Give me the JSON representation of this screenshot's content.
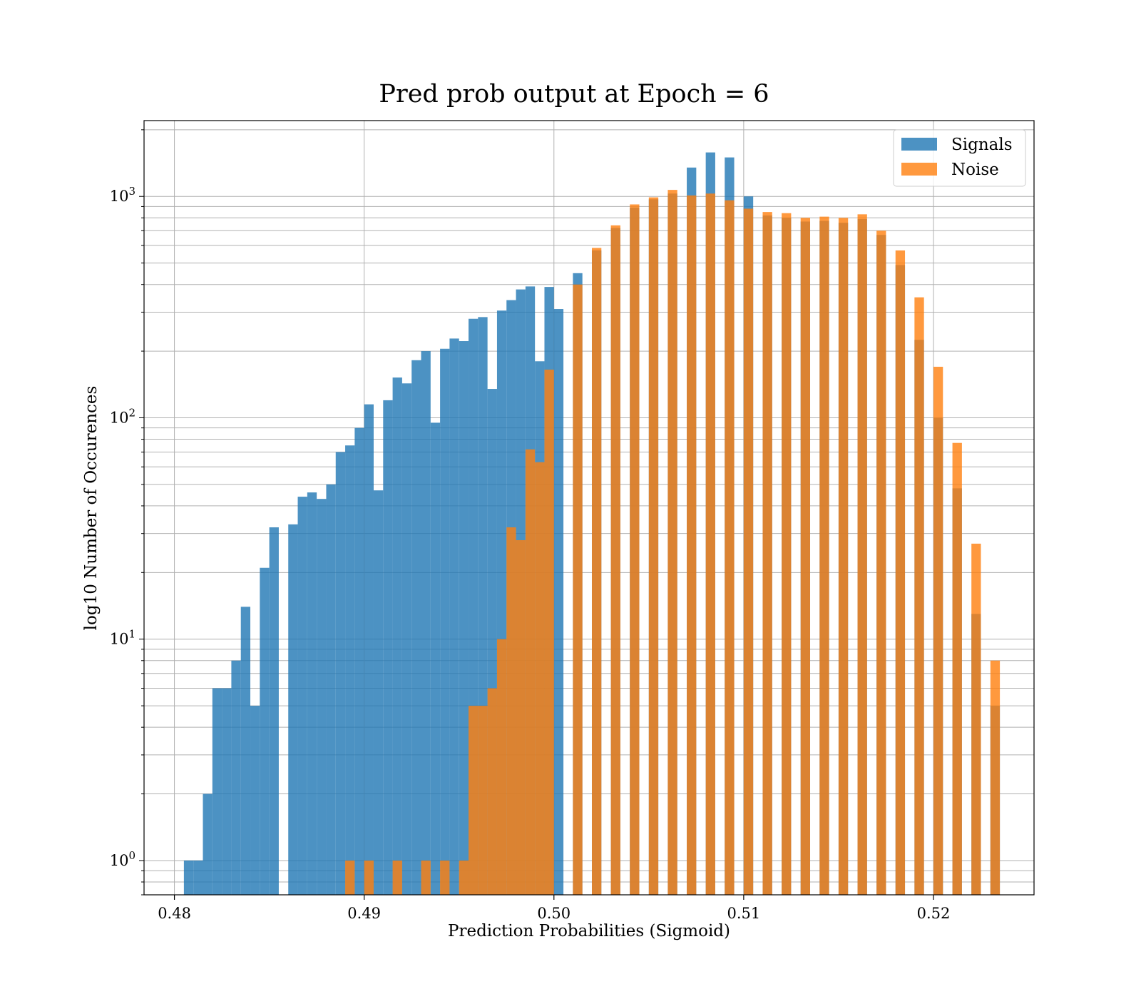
{
  "chart_data": {
    "type": "bar",
    "title": "Pred prob output at Epoch = 6",
    "xlabel": "Prediction Probabilities (Sigmoid)",
    "ylabel": "log10 Number of Occurences",
    "yscale": "log",
    "xlim": [
      0.4784,
      0.5253
    ],
    "ylim": [
      0.7,
      2200
    ],
    "x_ticks": [
      {
        "value": 0.48,
        "label": "0.48"
      },
      {
        "value": 0.49,
        "label": "0.49"
      },
      {
        "value": 0.5,
        "label": "0.50"
      },
      {
        "value": 0.51,
        "label": "0.51"
      },
      {
        "value": 0.52,
        "label": "0.52"
      }
    ],
    "y_ticks": [
      {
        "value": 1,
        "base": "10",
        "exp": "0"
      },
      {
        "value": 10,
        "base": "10",
        "exp": "1"
      },
      {
        "value": 100,
        "base": "10",
        "exp": "2"
      },
      {
        "value": 1000,
        "base": "10",
        "exp": "3"
      }
    ],
    "grid": true,
    "legend_position": "top-right",
    "series": [
      {
        "name": "Signals",
        "color": "#1f77b4",
        "bins": [
          [
            0.4805,
            0.481,
            1
          ],
          [
            0.481,
            0.4815,
            1
          ],
          [
            0.4815,
            0.482,
            2
          ],
          [
            0.482,
            0.4825,
            6
          ],
          [
            0.4825,
            0.483,
            6
          ],
          [
            0.483,
            0.4835,
            8
          ],
          [
            0.4835,
            0.484,
            14
          ],
          [
            0.484,
            0.4845,
            5
          ],
          [
            0.4845,
            0.485,
            21
          ],
          [
            0.485,
            0.4855,
            32
          ],
          [
            0.486,
            0.4865,
            33
          ],
          [
            0.4865,
            0.487,
            44
          ],
          [
            0.487,
            0.4875,
            46
          ],
          [
            0.4875,
            0.488,
            43
          ],
          [
            0.488,
            0.4885,
            50
          ],
          [
            0.4885,
            0.489,
            70
          ],
          [
            0.489,
            0.4895,
            75
          ],
          [
            0.4895,
            0.49,
            90
          ],
          [
            0.49,
            0.4905,
            115
          ],
          [
            0.4905,
            0.491,
            47
          ],
          [
            0.491,
            0.4915,
            120
          ],
          [
            0.4915,
            0.492,
            152
          ],
          [
            0.492,
            0.4925,
            143
          ],
          [
            0.4925,
            0.493,
            182
          ],
          [
            0.493,
            0.4935,
            200
          ],
          [
            0.4935,
            0.494,
            95
          ],
          [
            0.494,
            0.4945,
            205
          ],
          [
            0.4945,
            0.495,
            228
          ],
          [
            0.495,
            0.4955,
            222
          ],
          [
            0.4955,
            0.496,
            280
          ],
          [
            0.496,
            0.4965,
            285
          ],
          [
            0.4965,
            0.497,
            135
          ],
          [
            0.497,
            0.4975,
            305
          ],
          [
            0.4975,
            0.498,
            340
          ],
          [
            0.498,
            0.4985,
            380
          ],
          [
            0.4985,
            0.499,
            392
          ],
          [
            0.499,
            0.4995,
            180
          ],
          [
            0.4995,
            0.5,
            390
          ],
          [
            0.5,
            0.5005,
            310
          ],
          [
            0.501,
            0.5015,
            450
          ],
          [
            0.502,
            0.5025,
            570
          ],
          [
            0.503,
            0.5035,
            720
          ],
          [
            0.504,
            0.5045,
            890
          ],
          [
            0.505,
            0.5055,
            970
          ],
          [
            0.506,
            0.5065,
            1030
          ],
          [
            0.507,
            0.5075,
            1350
          ],
          [
            0.508,
            0.5085,
            1580
          ],
          [
            0.509,
            0.5095,
            1500
          ],
          [
            0.51,
            0.5105,
            1000
          ],
          [
            0.511,
            0.5115,
            820
          ],
          [
            0.512,
            0.5125,
            800
          ],
          [
            0.513,
            0.5135,
            770
          ],
          [
            0.514,
            0.5145,
            775
          ],
          [
            0.515,
            0.5155,
            760
          ],
          [
            0.516,
            0.5165,
            790
          ],
          [
            0.517,
            0.5175,
            670
          ],
          [
            0.518,
            0.5185,
            490
          ],
          [
            0.519,
            0.5195,
            225
          ],
          [
            0.52,
            0.5205,
            100
          ],
          [
            0.521,
            0.5215,
            48
          ],
          [
            0.522,
            0.5225,
            13
          ],
          [
            0.523,
            0.5235,
            5
          ]
        ]
      },
      {
        "name": "Noise",
        "color": "#ff7f0e",
        "bins": [
          [
            0.489,
            0.4895,
            1
          ],
          [
            0.49,
            0.4905,
            1
          ],
          [
            0.4915,
            0.492,
            1
          ],
          [
            0.493,
            0.4935,
            1
          ],
          [
            0.494,
            0.4945,
            1
          ],
          [
            0.495,
            0.4955,
            1
          ],
          [
            0.4955,
            0.496,
            5
          ],
          [
            0.496,
            0.4965,
            5
          ],
          [
            0.4965,
            0.497,
            6
          ],
          [
            0.497,
            0.4975,
            10
          ],
          [
            0.4975,
            0.498,
            32
          ],
          [
            0.498,
            0.4985,
            28
          ],
          [
            0.4985,
            0.499,
            72
          ],
          [
            0.499,
            0.4995,
            63
          ],
          [
            0.4995,
            0.5,
            165
          ],
          [
            0.501,
            0.5015,
            400
          ],
          [
            0.502,
            0.5025,
            585
          ],
          [
            0.503,
            0.5035,
            740
          ],
          [
            0.504,
            0.5045,
            920
          ],
          [
            0.505,
            0.5055,
            990
          ],
          [
            0.506,
            0.5065,
            1070
          ],
          [
            0.507,
            0.5075,
            1010
          ],
          [
            0.508,
            0.5085,
            1030
          ],
          [
            0.509,
            0.5095,
            960
          ],
          [
            0.51,
            0.5105,
            880
          ],
          [
            0.511,
            0.5115,
            850
          ],
          [
            0.512,
            0.5125,
            840
          ],
          [
            0.513,
            0.5135,
            800
          ],
          [
            0.514,
            0.5145,
            810
          ],
          [
            0.515,
            0.5155,
            800
          ],
          [
            0.516,
            0.5165,
            830
          ],
          [
            0.517,
            0.5175,
            700
          ],
          [
            0.518,
            0.5185,
            570
          ],
          [
            0.519,
            0.5195,
            350
          ],
          [
            0.52,
            0.5205,
            170
          ],
          [
            0.521,
            0.5215,
            77
          ],
          [
            0.522,
            0.5225,
            27
          ],
          [
            0.523,
            0.5235,
            8
          ]
        ]
      }
    ]
  }
}
